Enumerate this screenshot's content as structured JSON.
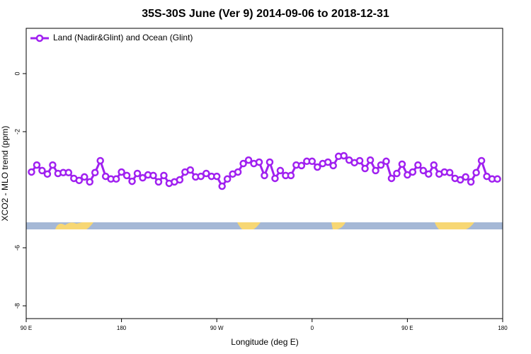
{
  "chart_data": {
    "type": "line",
    "title": "35S-30S June (Ver 9)   2014-09-06 to 2018-12-31",
    "xlabel": "Longitude (deg E)",
    "ylabel": "XCO2 - MLO trend (ppm)",
    "xlim": [
      90,
      540
    ],
    "ylim": [
      -8.44,
      1.56
    ],
    "xticks": [
      {
        "value": 90,
        "label": "90 E"
      },
      180,
      {
        "value": 270,
        "label": "90 W"
      },
      {
        "value": 360,
        "label": "0"
      },
      {
        "value": 450,
        "label": "90 E"
      },
      {
        "value": 540,
        "label": "180"
      }
    ],
    "yticks": [
      0,
      -2,
      -6,
      -8
    ],
    "legend": "top-left",
    "x": [
      95,
      100,
      105,
      110,
      115,
      120,
      125,
      130,
      135,
      140,
      145,
      150,
      155,
      160,
      165,
      170,
      175,
      180,
      185,
      190,
      195,
      200,
      205,
      210,
      215,
      220,
      225,
      230,
      235,
      240,
      245,
      250,
      255,
      260,
      265,
      270,
      275,
      280,
      285,
      290,
      295,
      300,
      305,
      310,
      315,
      320,
      325,
      330,
      335,
      340,
      345,
      350,
      355,
      360,
      365,
      370,
      375,
      380,
      385,
      390,
      395,
      400,
      405,
      410,
      415,
      420,
      425,
      430,
      435,
      440,
      445,
      450,
      455,
      460,
      465,
      470,
      475,
      480,
      485,
      490,
      495,
      500,
      505,
      510,
      515,
      520,
      525,
      530,
      535
    ],
    "series": [
      {
        "name": "Land (Nadir&Glint) and Ocean (Glint)",
        "color": "#a020f0",
        "values": [
          -3.39,
          -3.15,
          -3.34,
          -3.46,
          -3.15,
          -3.44,
          -3.41,
          -3.41,
          -3.61,
          -3.68,
          -3.56,
          -3.73,
          -3.41,
          -3.0,
          -3.54,
          -3.63,
          -3.63,
          -3.39,
          -3.51,
          -3.71,
          -3.44,
          -3.59,
          -3.49,
          -3.51,
          -3.73,
          -3.51,
          -3.78,
          -3.73,
          -3.66,
          -3.39,
          -3.32,
          -3.56,
          -3.54,
          -3.44,
          -3.54,
          -3.54,
          -3.88,
          -3.63,
          -3.46,
          -3.39,
          -3.1,
          -2.98,
          -3.1,
          -3.05,
          -3.51,
          -3.05,
          -3.61,
          -3.34,
          -3.51,
          -3.51,
          -3.15,
          -3.17,
          -3.02,
          -3.02,
          -3.22,
          -3.1,
          -3.05,
          -3.17,
          -2.85,
          -2.83,
          -2.98,
          -3.07,
          -3.0,
          -3.27,
          -2.98,
          -3.34,
          -3.15,
          -3.02,
          -3.61,
          -3.44,
          -3.12,
          -3.49,
          -3.39,
          -3.15,
          -3.34,
          -3.46,
          -3.15,
          -3.46,
          -3.39,
          -3.41,
          -3.61,
          -3.66,
          -3.56,
          -3.73,
          -3.41,
          -3.0,
          -3.54,
          -3.63,
          -3.63
        ]
      }
    ]
  }
}
